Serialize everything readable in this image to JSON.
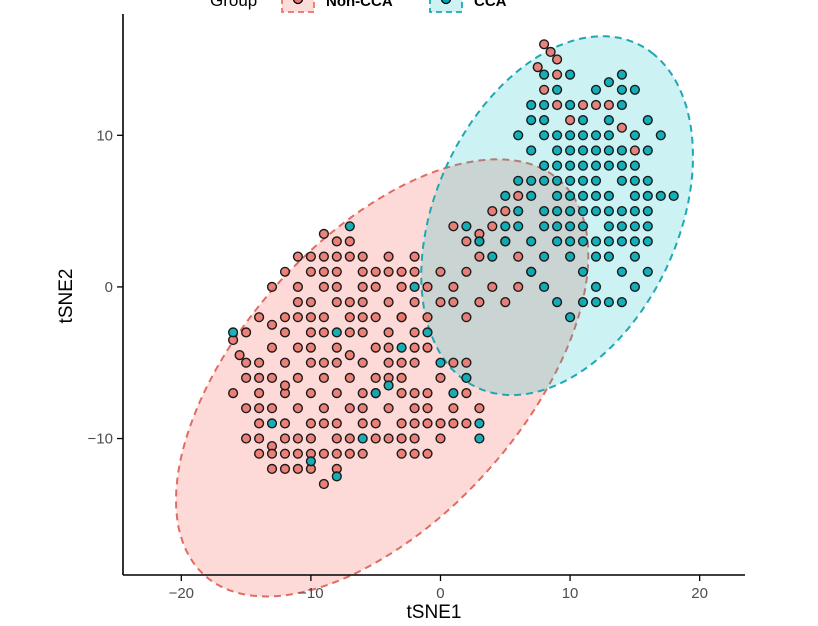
{
  "chart_data": {
    "type": "scatter",
    "title": "",
    "xlabel": "tSNE1",
    "ylabel": "tSNE2",
    "xlim": [
      -24.5,
      23.5
    ],
    "ylim": [
      -19,
      18
    ],
    "x_ticks": [
      -20,
      -10,
      0,
      10,
      20
    ],
    "x_tick_labels": [
      "−20",
      "−10",
      "0",
      "10",
      "20"
    ],
    "y_ticks": [
      -10,
      0,
      10
    ],
    "y_tick_labels": [
      "−10",
      "0",
      "10"
    ],
    "grid": false,
    "legend": {
      "title": "Group",
      "placement": "top",
      "entries": [
        "Non-CCA",
        "CCA"
      ]
    },
    "ellipses": [
      {
        "group": "Non-CCA",
        "center": [
          -4.5,
          -6
        ],
        "semi_axis_major": 19,
        "semi_axis_minor": 10,
        "angle_deg": 40
      },
      {
        "group": "CCA",
        "center": [
          9,
          4.7
        ],
        "semi_axis_major": 13,
        "semi_axis_minor": 9,
        "angle_deg": 55
      }
    ],
    "series": [
      {
        "name": "Non-CCA",
        "color": "#e8766e",
        "fill_color": "#f8766d",
        "points": [
          [
            -16,
            -3.5
          ],
          [
            -15,
            -5
          ],
          [
            -14,
            -6
          ],
          [
            -15.5,
            -4.5
          ],
          [
            -16,
            -7
          ],
          [
            -15,
            -8
          ],
          [
            -14,
            -9
          ],
          [
            -13,
            -10.5
          ],
          [
            -14,
            -11
          ],
          [
            -15,
            -10
          ],
          [
            -12,
            -11
          ],
          [
            -13,
            -12
          ],
          [
            -11,
            -12
          ],
          [
            -12,
            -9
          ],
          [
            -11,
            -8
          ],
          [
            -10,
            -10
          ],
          [
            -10,
            -12
          ],
          [
            -9,
            -13
          ],
          [
            -9,
            -11
          ],
          [
            -8,
            -12
          ],
          [
            -8,
            -10
          ],
          [
            -7,
            -11
          ],
          [
            -8,
            -9
          ],
          [
            -10,
            -7
          ],
          [
            -11,
            -6
          ],
          [
            -12,
            -5
          ],
          [
            -13,
            -4
          ],
          [
            -12,
            -3
          ],
          [
            -11,
            -2
          ],
          [
            -10,
            -3
          ],
          [
            -9,
            -2
          ],
          [
            -8,
            -4
          ],
          [
            -9,
            -5
          ],
          [
            -10,
            -5
          ],
          [
            -12,
            -7
          ],
          [
            -13,
            -8
          ],
          [
            -14,
            -7
          ],
          [
            -7,
            -6
          ],
          [
            -6,
            -7
          ],
          [
            -6,
            -5
          ],
          [
            -7,
            -3
          ],
          [
            -6,
            -2
          ],
          [
            -5,
            -4
          ],
          [
            -4,
            -3
          ],
          [
            -3,
            -2
          ],
          [
            -2,
            -3
          ],
          [
            -1,
            -4
          ],
          [
            -2,
            -5
          ],
          [
            -3,
            -5
          ],
          [
            -4,
            -6
          ],
          [
            -5,
            -7
          ],
          [
            -4,
            -8
          ],
          [
            -5,
            -9
          ],
          [
            -6,
            -9
          ],
          [
            -7,
            -8
          ],
          [
            -8,
            -7
          ],
          [
            -9,
            -8
          ],
          [
            -10,
            -9
          ],
          [
            -11,
            -10
          ],
          [
            -6,
            -11
          ],
          [
            -5,
            -10
          ],
          [
            -4,
            -10
          ],
          [
            -3,
            -9
          ],
          [
            -2,
            -8
          ],
          [
            -1,
            -7
          ],
          [
            -2,
            -7
          ],
          [
            0,
            -6
          ],
          [
            1,
            -5
          ],
          [
            2,
            -5
          ],
          [
            2,
            -7
          ],
          [
            1,
            -8
          ],
          [
            -1,
            -9
          ],
          [
            -2,
            -10
          ],
          [
            -3,
            -11
          ],
          [
            0,
            -10
          ],
          [
            1,
            -9
          ],
          [
            2,
            -9
          ],
          [
            3,
            -8
          ],
          [
            -9,
            0
          ],
          [
            -8,
            1
          ],
          [
            -7,
            -1
          ],
          [
            -6,
            0
          ],
          [
            -10,
            1
          ],
          [
            -9,
            2
          ],
          [
            -8,
            3
          ],
          [
            -9,
            3.5
          ],
          [
            -7,
            3
          ],
          [
            -10,
            -1
          ],
          [
            -11,
            0
          ],
          [
            -12,
            1
          ],
          [
            -6,
            2
          ],
          [
            -5,
            0
          ],
          [
            -4,
            -1
          ],
          [
            -4,
            1
          ],
          [
            -3,
            0
          ],
          [
            -2,
            1
          ],
          [
            -1,
            0
          ],
          [
            -2,
            -1
          ],
          [
            -3,
            -2
          ],
          [
            -11,
            -4
          ],
          [
            -10,
            -4
          ],
          [
            -9,
            -6
          ],
          [
            -8,
            -5
          ],
          [
            -7,
            -4.5
          ],
          [
            -6,
            -3
          ],
          [
            -13,
            -6
          ],
          [
            -14,
            -5
          ],
          [
            -12,
            -6.5
          ],
          [
            -13,
            -2.5
          ],
          [
            -15,
            -3
          ],
          [
            -14,
            -10
          ],
          [
            -12,
            -10
          ],
          [
            -10,
            -11
          ],
          [
            -9,
            -9
          ],
          [
            -7,
            -10
          ],
          [
            -8,
            -11
          ],
          [
            -6,
            -8
          ],
          [
            -5,
            -6
          ],
          [
            -4,
            -4
          ],
          [
            -3,
            -6
          ],
          [
            -2,
            -4
          ],
          [
            -1,
            -2
          ],
          [
            0,
            -1
          ],
          [
            1,
            -1
          ],
          [
            0,
            1
          ],
          [
            1,
            0
          ],
          [
            2,
            1
          ],
          [
            3,
            2
          ],
          [
            2,
            3
          ],
          [
            1,
            4
          ],
          [
            3,
            3
          ],
          [
            4,
            4
          ],
          [
            5,
            3
          ],
          [
            6,
            2
          ],
          [
            7,
            1
          ],
          [
            6,
            0
          ],
          [
            5,
            -1
          ],
          [
            4,
            0
          ],
          [
            3,
            -1
          ],
          [
            2,
            -2
          ],
          [
            -8,
            -1
          ],
          [
            -9,
            -3
          ],
          [
            -10,
            -2
          ],
          [
            -11,
            -1
          ],
          [
            -12,
            -2
          ],
          [
            -13,
            0
          ],
          [
            -14,
            -2
          ],
          [
            -6,
            -1
          ],
          [
            -5,
            -2
          ],
          [
            -4,
            -5
          ],
          [
            -3,
            -7
          ],
          [
            -2,
            -9
          ],
          [
            -1,
            -8
          ],
          [
            0,
            -9
          ],
          [
            -1,
            -11
          ],
          [
            -2,
            -11
          ],
          [
            -3,
            -10
          ],
          [
            -11,
            -11
          ],
          [
            -12,
            -12
          ],
          [
            -13,
            -11
          ],
          [
            -14,
            -8
          ],
          [
            -15,
            -6
          ],
          [
            -7,
            2
          ],
          [
            -8,
            2
          ],
          [
            -9,
            1
          ],
          [
            -10,
            2
          ],
          [
            -11,
            2
          ],
          [
            -5,
            1
          ],
          [
            -4,
            2
          ],
          [
            -3,
            1
          ],
          [
            -2,
            2
          ],
          [
            -6,
            1
          ],
          [
            -7,
            -2
          ],
          [
            -8,
            0
          ],
          [
            8,
            16
          ],
          [
            8.5,
            15.5
          ],
          [
            9,
            15
          ],
          [
            7.5,
            14.5
          ],
          [
            9,
            14
          ],
          [
            8,
            13
          ],
          [
            9,
            12
          ],
          [
            10,
            11
          ],
          [
            11,
            12
          ],
          [
            12,
            12
          ],
          [
            13,
            12
          ],
          [
            14,
            10.5
          ],
          [
            15,
            9
          ],
          [
            5,
            5
          ],
          [
            6,
            6
          ],
          [
            4,
            5
          ],
          [
            3,
            3.5
          ]
        ]
      },
      {
        "name": "CCA",
        "color": "#00a9b3",
        "fill_color": "#1fb5b9",
        "points": [
          [
            8,
            14
          ],
          [
            9,
            13
          ],
          [
            10,
            14
          ],
          [
            10,
            12
          ],
          [
            11,
            11
          ],
          [
            12,
            13
          ],
          [
            13,
            13.5
          ],
          [
            14,
            13
          ],
          [
            14,
            12
          ],
          [
            13,
            11
          ],
          [
            12,
            10
          ],
          [
            11,
            9
          ],
          [
            10,
            8
          ],
          [
            9,
            9
          ],
          [
            8,
            10
          ],
          [
            8,
            11
          ],
          [
            7,
            12
          ],
          [
            13,
            10
          ],
          [
            14,
            9
          ],
          [
            15,
            8
          ],
          [
            16,
            9
          ],
          [
            15,
            10
          ],
          [
            16,
            7
          ],
          [
            17,
            6
          ],
          [
            15,
            6
          ],
          [
            14,
            5
          ],
          [
            13,
            4
          ],
          [
            14,
            3
          ],
          [
            13,
            2
          ],
          [
            12,
            3
          ],
          [
            11,
            4
          ],
          [
            10,
            5
          ],
          [
            9,
            6
          ],
          [
            8,
            5
          ],
          [
            7,
            6
          ],
          [
            6,
            5
          ],
          [
            5,
            4
          ],
          [
            9,
            3
          ],
          [
            10,
            2
          ],
          [
            11,
            1
          ],
          [
            12,
            0
          ],
          [
            13,
            -1
          ],
          [
            14,
            -1
          ],
          [
            15,
            0
          ],
          [
            16,
            1
          ],
          [
            15,
            2
          ],
          [
            14,
            1
          ],
          [
            12,
            -1
          ],
          [
            11,
            -1
          ],
          [
            10,
            -2
          ],
          [
            9,
            -1
          ],
          [
            8,
            0
          ],
          [
            7,
            1
          ],
          [
            8,
            2
          ],
          [
            9,
            4
          ],
          [
            10,
            3
          ],
          [
            11,
            5
          ],
          [
            12,
            5
          ],
          [
            13,
            6
          ],
          [
            12,
            7
          ],
          [
            11,
            7
          ],
          [
            10,
            9
          ],
          [
            9,
            10
          ],
          [
            10,
            10
          ],
          [
            11,
            10
          ],
          [
            12,
            9
          ],
          [
            13,
            8
          ],
          [
            14,
            7
          ],
          [
            15,
            5
          ],
          [
            16,
            4
          ],
          [
            16,
            3
          ],
          [
            15,
            3
          ],
          [
            14,
            4
          ],
          [
            13,
            5
          ],
          [
            12,
            6
          ],
          [
            11,
            6
          ],
          [
            10,
            7
          ],
          [
            9,
            7
          ],
          [
            8,
            8
          ],
          [
            7,
            9
          ],
          [
            6,
            10
          ],
          [
            7,
            11
          ],
          [
            8,
            12
          ],
          [
            14,
            14
          ],
          [
            15,
            13
          ],
          [
            16,
            11
          ],
          [
            17,
            10
          ],
          [
            18,
            6
          ],
          [
            16,
            5
          ],
          [
            15,
            4
          ],
          [
            13,
            3
          ],
          [
            12,
            2
          ],
          [
            11,
            3
          ],
          [
            10,
            4
          ],
          [
            9,
            5
          ],
          [
            8,
            4
          ],
          [
            7,
            3
          ],
          [
            6,
            4
          ],
          [
            5,
            3
          ],
          [
            4,
            2
          ],
          [
            3,
            3
          ],
          [
            2,
            4
          ],
          [
            5,
            6
          ],
          [
            6,
            7
          ],
          [
            7,
            7
          ],
          [
            8,
            7
          ],
          [
            9,
            8
          ],
          [
            10,
            6
          ],
          [
            11,
            8
          ],
          [
            12,
            8
          ],
          [
            13,
            9
          ],
          [
            14,
            8
          ],
          [
            15,
            7
          ],
          [
            16,
            6
          ],
          [
            3,
            -10
          ],
          [
            3,
            -9
          ],
          [
            -7,
            4
          ],
          [
            -16,
            -3
          ],
          [
            -13,
            -9
          ],
          [
            -10,
            -11.5
          ],
          [
            -8,
            -12.5
          ],
          [
            -6,
            -10
          ],
          [
            -5,
            -7
          ],
          [
            -4,
            -6.5
          ],
          [
            -3,
            -4
          ],
          [
            2,
            -6
          ],
          [
            1,
            -7
          ],
          [
            0,
            -5
          ],
          [
            -1,
            -3
          ],
          [
            -2,
            0
          ],
          [
            -8,
            -3
          ]
        ]
      }
    ]
  }
}
